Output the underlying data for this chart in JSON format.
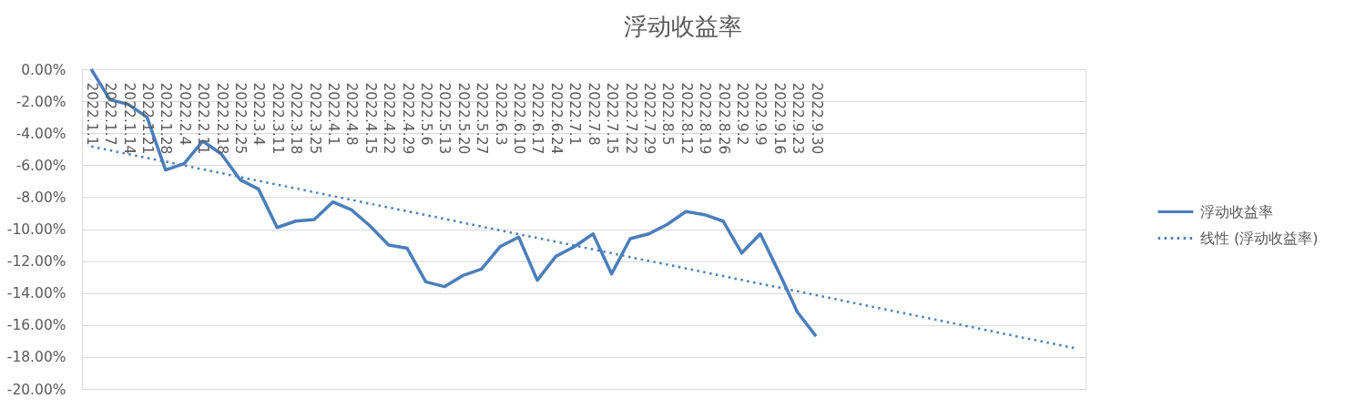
{
  "chart_data": {
    "type": "line",
    "title": "浮动收益率",
    "categories": [
      "2022.1.1",
      "2022.1.7",
      "2022.1.14",
      "2022.1.21",
      "2022.1.28",
      "2022.2.4",
      "2022.2.11",
      "2022.2.18",
      "2022.2.25",
      "2022.3.4",
      "2022.3.11",
      "2022.3.18",
      "2022.3.25",
      "2022.4.1",
      "2022.4.8",
      "2022.4.15",
      "2022.4.22",
      "2022.4.29",
      "2022.5.6",
      "2022.5.13",
      "2022.5.20",
      "2022.5.27",
      "2022.6.3",
      "2022.6.10",
      "2022.6.17",
      "2022.6.24",
      "2022.7.1",
      "2022.7.8",
      "2022.7.15",
      "2022.7.22",
      "2022.7.29",
      "2022.8.5",
      "2022.8.12",
      "2022.8.19",
      "2022.8.26",
      "2022.9.2",
      "2022.9.9",
      "2022.9.16",
      "2022.9.23",
      "2022.9.30",
      null,
      null,
      null,
      null,
      null,
      null,
      null,
      null,
      null,
      null,
      null,
      null,
      null,
      null
    ],
    "series": [
      {
        "name": "浮动收益率",
        "line_style": "solid",
        "color": "#4a7ebb",
        "values": [
          0.0,
          -1.9,
          -2.2,
          -3.0,
          -6.3,
          -5.9,
          -4.5,
          -5.3,
          -6.9,
          -7.5,
          -9.9,
          -9.5,
          -9.4,
          -8.3,
          -8.8,
          -9.8,
          -11.0,
          -11.2,
          -13.3,
          -13.6,
          -12.9,
          -12.5,
          -11.1,
          -10.5,
          -13.2,
          -11.7,
          -11.1,
          -10.3,
          -12.8,
          -10.6,
          -10.3,
          -9.7,
          -8.9,
          -9.1,
          -9.5,
          -11.5,
          -10.3,
          -12.7,
          -15.2,
          -16.7,
          null,
          null,
          null,
          null,
          null,
          null,
          null,
          null,
          null,
          null,
          null,
          null,
          null,
          null
        ]
      },
      {
        "name": "线性 (浮动收益率)",
        "line_style": "dotted",
        "color": "#4a7ebb",
        "values": [
          -4.83,
          -5.07,
          -5.31,
          -5.55,
          -5.78,
          -6.02,
          -6.26,
          -6.5,
          -6.74,
          -6.98,
          -7.22,
          -7.45,
          -7.69,
          -7.93,
          -8.17,
          -8.41,
          -8.65,
          -8.88,
          -9.12,
          -9.36,
          -9.6,
          -9.84,
          -10.08,
          -10.32,
          -10.55,
          -10.79,
          -11.03,
          -11.27,
          -11.51,
          -11.75,
          -11.99,
          -12.22,
          -12.46,
          -12.7,
          -12.94,
          -13.18,
          -13.42,
          -13.65,
          -13.89,
          -14.13,
          -14.37,
          -14.61,
          -14.85,
          -15.09,
          -15.32,
          -15.56,
          -15.8,
          -16.04,
          -16.28,
          -16.52,
          -16.76,
          -16.99,
          -17.23,
          -17.47
        ]
      }
    ],
    "ylim": [
      -20,
      0
    ],
    "yticks": [
      {
        "value": 0,
        "label": "0.00%"
      },
      {
        "value": -2,
        "label": "-2.00%"
      },
      {
        "value": -4,
        "label": "-4.00%"
      },
      {
        "value": -6,
        "label": "-6.00%"
      },
      {
        "value": -8,
        "label": "-8.00%"
      },
      {
        "value": -10,
        "label": "-10.00%"
      },
      {
        "value": -12,
        "label": "-12.00%"
      },
      {
        "value": -14,
        "label": "-14.00%"
      },
      {
        "value": -16,
        "label": "-16.00%"
      },
      {
        "value": -18,
        "label": "-18.00%"
      },
      {
        "value": -20,
        "label": "-20.00%"
      }
    ],
    "grid": "y",
    "legend": "right"
  }
}
